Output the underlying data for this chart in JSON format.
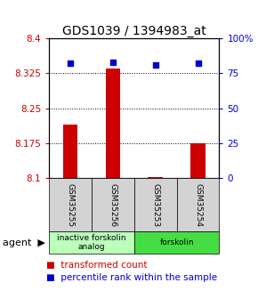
{
  "title": "GDS1039 / 1394983_at",
  "samples": [
    "GSM35255",
    "GSM35256",
    "GSM35253",
    "GSM35254"
  ],
  "bar_values": [
    8.215,
    8.335,
    8.102,
    8.175
  ],
  "percentile_values": [
    82,
    83,
    81,
    82
  ],
  "ylim_left": [
    8.1,
    8.4
  ],
  "ylim_right": [
    0,
    100
  ],
  "yticks_left": [
    8.1,
    8.175,
    8.25,
    8.325,
    8.4
  ],
  "ytick_labels_left": [
    "8.1",
    "8.175",
    "8.25",
    "8.325",
    "8.4"
  ],
  "yticks_right": [
    0,
    25,
    50,
    75,
    100
  ],
  "ytick_labels_right": [
    "0",
    "25",
    "50",
    "75",
    "100%"
  ],
  "bar_color": "#cc0000",
  "dot_color": "#0000cc",
  "agent_groups": [
    {
      "label": "inactive forskolin\nanalog",
      "color": "#bbffbb",
      "span": [
        0,
        2
      ]
    },
    {
      "label": "forskolin",
      "color": "#44dd44",
      "span": [
        2,
        4
      ]
    }
  ],
  "bar_width": 0.35,
  "bar_bottom": 8.1,
  "ylabel_left_color": "#cc0000",
  "ylabel_right_color": "#0000cc",
  "title_fontsize": 10,
  "tick_fontsize": 7.5,
  "legend_fontsize": 7.5
}
